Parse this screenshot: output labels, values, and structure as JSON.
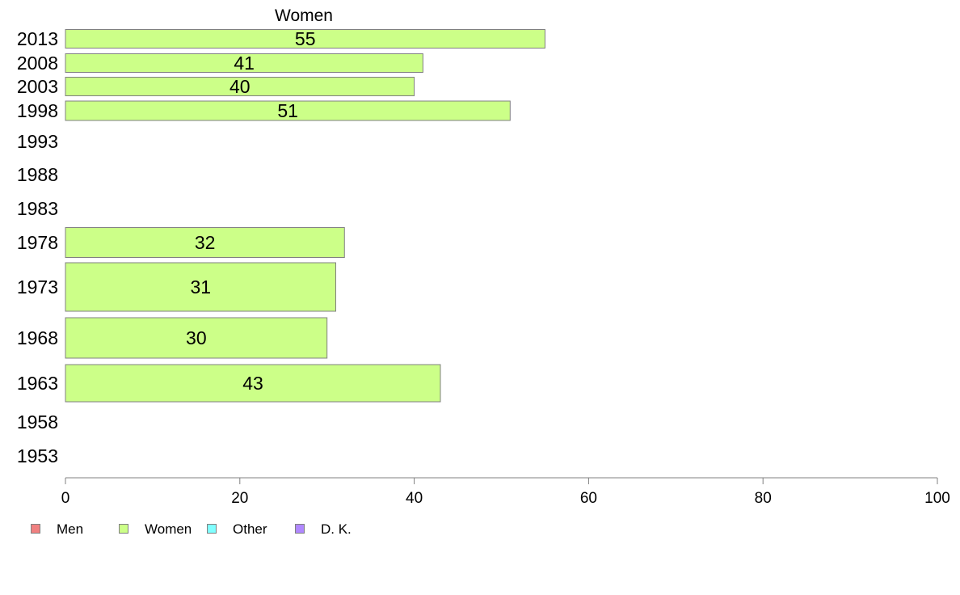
{
  "chart_data": {
    "type": "bar",
    "orientation": "horizontal",
    "title": "Women",
    "categories": [
      "2013",
      "2008",
      "2003",
      "1998",
      "1993",
      "1988",
      "1983",
      "1978",
      "1973",
      "1968",
      "1963",
      "1958",
      "1953"
    ],
    "series": [
      {
        "name": "Women",
        "values": [
          55,
          41,
          40,
          51,
          null,
          null,
          null,
          32,
          31,
          30,
          43,
          null,
          null
        ],
        "color": "#ccff88"
      }
    ],
    "xlim": [
      0,
      100
    ],
    "xticks": [
      "0",
      "20",
      "40",
      "60",
      "80",
      "100"
    ],
    "xlabel": "",
    "ylabel": "",
    "grid": false,
    "legend_position": "bottom-left"
  },
  "legend": [
    {
      "label": "Men",
      "color": "#f08080"
    },
    {
      "label": "Women",
      "color": "#ccff88"
    },
    {
      "label": "Other",
      "color": "#80ffff"
    },
    {
      "label": "D. K.",
      "color": "#b088ff"
    }
  ],
  "colors": {
    "bar_border": "#808080",
    "axis": "#808080",
    "text": "#000000"
  }
}
